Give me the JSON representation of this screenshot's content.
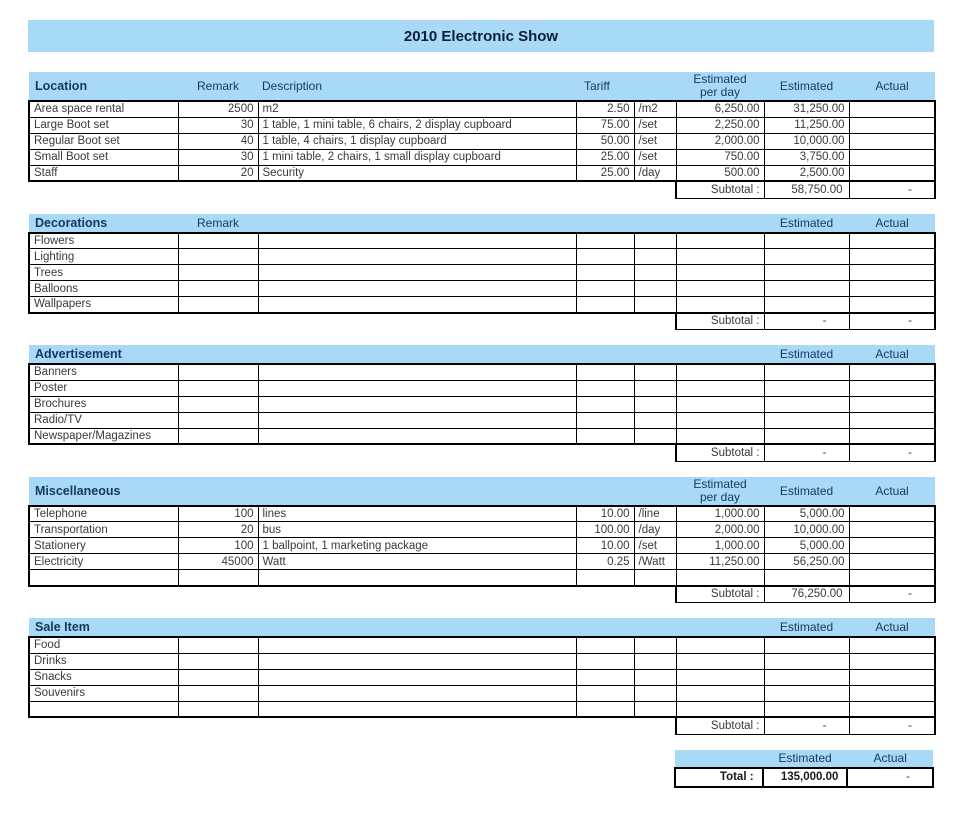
{
  "title": "2010 Electronic Show",
  "colors": {
    "band_blue": "#A8DAF7",
    "header_text": "#17375E",
    "title_text": "#101C3D",
    "body_text": "#3A3A3A",
    "border": "#000000"
  },
  "sections": [
    {
      "id": "location",
      "name": "Location",
      "headers": {
        "remark": "Remark",
        "description": "Description",
        "tariff": "Tariff",
        "per_day": "Estimated\nper day",
        "estimated": "Estimated",
        "actual": "Actual"
      },
      "rows": [
        [
          "Area space rental",
          "2500",
          "m2",
          "2.50",
          "/m2",
          "6,250.00",
          "31,250.00",
          ""
        ],
        [
          "Large Boot set",
          "30",
          "1 table, 1 mini table, 6 chairs, 2 display cupboard",
          "75.00",
          "/set",
          "2,250.00",
          "11,250.00",
          ""
        ],
        [
          "Regular Boot set",
          "40",
          "1 table, 4 chairs, 1 display cupboard",
          "50.00",
          "/set",
          "2,000.00",
          "10,000.00",
          ""
        ],
        [
          "Small Boot set",
          "30",
          "1 mini table, 2 chairs, 1 small display cupboard",
          "25.00",
          "/set",
          "750.00",
          "3,750.00",
          ""
        ],
        [
          "Staff",
          "20",
          "Security",
          "25.00",
          "/day",
          "500.00",
          "2,500.00",
          ""
        ]
      ],
      "subtotal": {
        "label": "Subtotal :",
        "estimated": "58,750.00",
        "actual": "-"
      }
    },
    {
      "id": "decorations",
      "name": "Decorations",
      "headers": {
        "remark": "Remark",
        "estimated": "Estimated",
        "actual": "Actual"
      },
      "rows": [
        [
          "Flowers",
          "",
          "",
          "",
          "",
          "",
          "",
          ""
        ],
        [
          "Lighting",
          "",
          "",
          "",
          "",
          "",
          "",
          ""
        ],
        [
          "Trees",
          "",
          "",
          "",
          "",
          "",
          "",
          ""
        ],
        [
          "Balloons",
          "",
          "",
          "",
          "",
          "",
          "",
          ""
        ],
        [
          "Wallpapers",
          "",
          "",
          "",
          "",
          "",
          "",
          ""
        ]
      ],
      "subtotal": {
        "label": "Subtotal :",
        "estimated": "-",
        "actual": "-"
      }
    },
    {
      "id": "advertisement",
      "name": "Advertisement",
      "headers": {
        "estimated": "Estimated",
        "actual": "Actual"
      },
      "rows": [
        [
          "Banners",
          "",
          "",
          "",
          "",
          "",
          "",
          ""
        ],
        [
          "Poster",
          "",
          "",
          "",
          "",
          "",
          "",
          ""
        ],
        [
          "Brochures",
          "",
          "",
          "",
          "",
          "",
          "",
          ""
        ],
        [
          "Radio/TV",
          "",
          "",
          "",
          "",
          "",
          "",
          ""
        ],
        [
          "Newspaper/Magazines",
          "",
          "",
          "",
          "",
          "",
          "",
          ""
        ]
      ],
      "subtotal": {
        "label": "Subtotal :",
        "estimated": "-",
        "actual": "-"
      }
    },
    {
      "id": "miscellaneous",
      "name": "Miscellaneous",
      "headers": {
        "per_day": "Estimated\nper day",
        "estimated": "Estimated",
        "actual": "Actual"
      },
      "rows": [
        [
          "Telephone",
          "100",
          "lines",
          "10.00",
          "/line",
          "1,000.00",
          "5,000.00",
          ""
        ],
        [
          "Transportation",
          "20",
          "bus",
          "100.00",
          "/day",
          "2,000.00",
          "10,000.00",
          ""
        ],
        [
          "Stationery",
          "100",
          "1 ballpoint, 1 marketing package",
          "10.00",
          "/set",
          "1,000.00",
          "5,000.00",
          ""
        ],
        [
          "Electricity",
          "45000",
          "Watt",
          "0.25",
          "/Watt",
          "11,250.00",
          "56,250.00",
          ""
        ],
        [
          "",
          "",
          "",
          "",
          "",
          "",
          "",
          ""
        ]
      ],
      "subtotal": {
        "label": "Subtotal :",
        "estimated": "76,250.00",
        "actual": "-"
      }
    },
    {
      "id": "sale-item",
      "name": "Sale Item",
      "headers": {
        "estimated": "Estimated",
        "actual": "Actual"
      },
      "rows": [
        [
          "Food",
          "",
          "",
          "",
          "",
          "",
          "",
          ""
        ],
        [
          "Drinks",
          "",
          "",
          "",
          "",
          "",
          "",
          ""
        ],
        [
          "Snacks",
          "",
          "",
          "",
          "",
          "",
          "",
          ""
        ],
        [
          "Souvenirs",
          "",
          "",
          "",
          "",
          "",
          "",
          ""
        ],
        [
          "",
          "",
          "",
          "",
          "",
          "",
          "",
          ""
        ]
      ],
      "subtotal": {
        "label": "Subtotal :",
        "estimated": "-",
        "actual": "-"
      }
    }
  ],
  "total": {
    "estimated_header": "Estimated",
    "actual_header": "Actual",
    "label": "Total :",
    "estimated": "135,000.00",
    "actual": "-"
  }
}
